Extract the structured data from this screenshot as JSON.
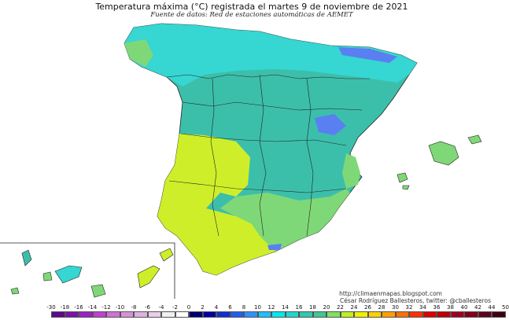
{
  "title": "Temperatura máxima (°C) registrada el martes 9 de noviembre de 2021",
  "subtitle": "Fuente de datos: Red de estaciones automáticas de AEMET",
  "credits": {
    "url": "http://climaenmapas.blogspot.com",
    "author": "César Rodríguez Ballesteros, twitter: @cballesteros"
  },
  "legend": {
    "labels": [
      "-30",
      "-18",
      "-16",
      "-14",
      "-12",
      "-10",
      "-8",
      "-6",
      "-4",
      "-2",
      "0",
      "2",
      "4",
      "6",
      "8",
      "10",
      "12",
      "14",
      "16",
      "18",
      "20",
      "22",
      "24",
      "26",
      "28",
      "30",
      "32",
      "34",
      "36",
      "38",
      "40",
      "42",
      "44",
      "50"
    ],
    "colors": [
      "#5a0a8c",
      "#7a12a8",
      "#9a22c4",
      "#c040d0",
      "#d070d8",
      "#d890d8",
      "#e0b0e0",
      "#e8d0e8",
      "#f0f0f0",
      "#ffffff",
      "#00006e",
      "#0000a0",
      "#1030d0",
      "#2060f0",
      "#3090ff",
      "#20c0ff",
      "#00e8f0",
      "#20d8d0",
      "#30c8b0",
      "#40c890",
      "#80e060",
      "#c0f020",
      "#f0f000",
      "#ffd000",
      "#ffa000",
      "#ff7000",
      "#ff3000",
      "#e00000",
      "#c00000",
      "#a00020",
      "#800020",
      "#600020",
      "#400010"
    ]
  },
  "map_colors": {
    "sea": "#ffffff",
    "north_cyan": "#36d6d2",
    "central_teal": "#3cbfaa",
    "south_green": "#7fd877",
    "southwest_yellow": "#cfee2a",
    "cold_blue": "#5a7ff0",
    "border": "#222222"
  }
}
